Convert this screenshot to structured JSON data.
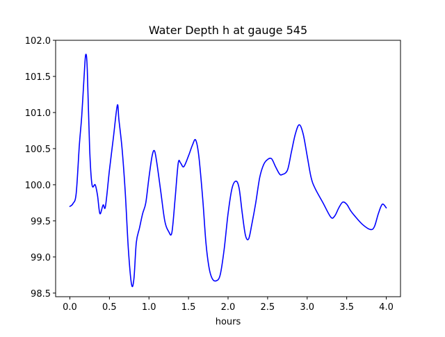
{
  "chart_data": {
    "type": "line",
    "title": "Water Depth h at gauge 545",
    "xlabel": "hours",
    "ylabel": "",
    "xlim": [
      -0.18,
      4.18
    ],
    "ylim": [
      98.45,
      102.0
    ],
    "xticks": [
      0.0,
      0.5,
      1.0,
      1.5,
      2.0,
      2.5,
      3.0,
      3.5,
      4.0
    ],
    "xtick_labels": [
      "0.0",
      "0.5",
      "1.0",
      "1.5",
      "2.0",
      "2.5",
      "3.0",
      "3.5",
      "4.0"
    ],
    "yticks": [
      98.5,
      99.0,
      99.5,
      100.0,
      100.5,
      101.0,
      101.5,
      102.0
    ],
    "ytick_labels": [
      "98.5",
      "99.0",
      "99.5",
      "100.0",
      "100.5",
      "101.0",
      "101.5",
      "102.0"
    ],
    "grid": false,
    "series": [
      {
        "color": "#0000ff",
        "x": [
          0.0,
          0.04,
          0.08,
          0.12,
          0.15,
          0.18,
          0.2,
          0.22,
          0.25,
          0.28,
          0.32,
          0.35,
          0.38,
          0.42,
          0.45,
          0.5,
          0.55,
          0.6,
          0.62,
          0.66,
          0.7,
          0.74,
          0.78,
          0.81,
          0.84,
          0.88,
          0.92,
          0.96,
          1.0,
          1.04,
          1.07,
          1.1,
          1.15,
          1.2,
          1.25,
          1.29,
          1.33,
          1.37,
          1.4,
          1.44,
          1.5,
          1.55,
          1.59,
          1.63,
          1.68,
          1.72,
          1.76,
          1.8,
          1.85,
          1.9,
          1.95,
          2.0,
          2.05,
          2.1,
          2.14,
          2.18,
          2.22,
          2.26,
          2.3,
          2.35,
          2.4,
          2.45,
          2.5,
          2.55,
          2.6,
          2.65,
          2.68,
          2.75,
          2.8,
          2.85,
          2.9,
          2.95,
          3.0,
          3.05,
          3.1,
          3.2,
          3.3,
          3.35,
          3.4,
          3.45,
          3.5,
          3.55,
          3.6,
          3.7,
          3.8,
          3.85,
          3.9,
          3.95,
          4.0
        ],
        "y": [
          99.7,
          99.74,
          99.88,
          100.55,
          100.95,
          101.5,
          101.8,
          101.6,
          100.5,
          100.0,
          100.0,
          99.85,
          99.6,
          99.72,
          99.7,
          100.2,
          100.65,
          101.1,
          100.9,
          100.5,
          99.9,
          99.1,
          98.62,
          98.7,
          99.2,
          99.4,
          99.6,
          99.75,
          100.1,
          100.4,
          100.47,
          100.3,
          99.9,
          99.5,
          99.35,
          99.34,
          99.8,
          100.3,
          100.3,
          100.25,
          100.4,
          100.55,
          100.62,
          100.4,
          99.8,
          99.2,
          98.85,
          98.7,
          98.67,
          98.75,
          99.1,
          99.6,
          99.95,
          100.05,
          99.95,
          99.6,
          99.3,
          99.25,
          99.45,
          99.75,
          100.1,
          100.28,
          100.35,
          100.36,
          100.25,
          100.15,
          100.14,
          100.2,
          100.45,
          100.7,
          100.83,
          100.7,
          100.4,
          100.1,
          99.95,
          99.75,
          99.55,
          99.57,
          99.68,
          99.76,
          99.73,
          99.64,
          99.57,
          99.45,
          99.38,
          99.42,
          99.6,
          99.73,
          99.68
        ]
      }
    ]
  }
}
